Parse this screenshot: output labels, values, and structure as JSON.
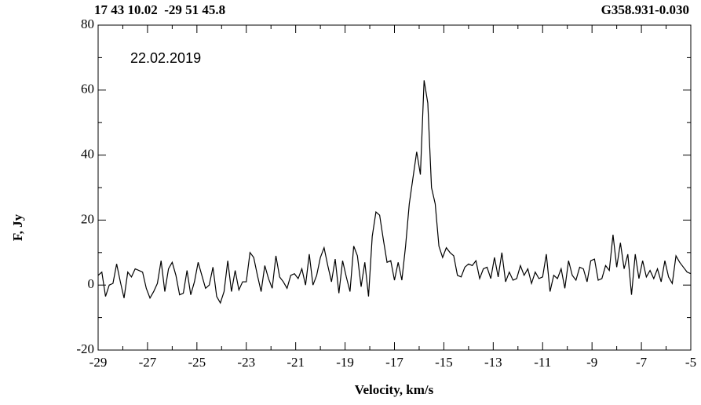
{
  "chart_data": {
    "type": "line",
    "title_left": "17 43 10.02  -29 51 45.8",
    "title_right": "G358.931-0.030",
    "annotation": "22.02.2019",
    "xlabel": "Velocity, km/s",
    "ylabel": "F, Jy",
    "color": "#000000",
    "xlim": [
      -29,
      -5
    ],
    "ylim": [
      -20,
      80
    ],
    "xticks": [
      -29,
      -27,
      -25,
      -23,
      -21,
      -19,
      -17,
      -15,
      -13,
      -11,
      -9,
      -7,
      -5
    ],
    "yticks": [
      -20,
      0,
      20,
      40,
      60,
      80
    ],
    "x": [
      -29.0,
      -28.85,
      -28.7,
      -28.55,
      -28.4,
      -28.25,
      -28.1,
      -27.95,
      -27.8,
      -27.65,
      -27.5,
      -27.35,
      -27.2,
      -27.05,
      -26.9,
      -26.75,
      -26.6,
      -26.45,
      -26.3,
      -26.15,
      -26.0,
      -25.85,
      -25.7,
      -25.55,
      -25.4,
      -25.25,
      -25.1,
      -24.95,
      -24.8,
      -24.65,
      -24.5,
      -24.35,
      -24.2,
      -24.05,
      -23.9,
      -23.75,
      -23.6,
      -23.45,
      -23.3,
      -23.15,
      -23.0,
      -22.85,
      -22.7,
      -22.55,
      -22.4,
      -22.25,
      -22.1,
      -21.95,
      -21.8,
      -21.65,
      -21.5,
      -21.35,
      -21.2,
      -21.05,
      -20.9,
      -20.75,
      -20.6,
      -20.45,
      -20.3,
      -20.15,
      -20.0,
      -19.85,
      -19.7,
      -19.55,
      -19.4,
      -19.25,
      -19.1,
      -18.95,
      -18.8,
      -18.65,
      -18.5,
      -18.35,
      -18.2,
      -18.05,
      -17.9,
      -17.75,
      -17.6,
      -17.45,
      -17.3,
      -17.15,
      -17.0,
      -16.85,
      -16.7,
      -16.55,
      -16.4,
      -16.25,
      -16.1,
      -15.95,
      -15.8,
      -15.65,
      -15.5,
      -15.35,
      -15.2,
      -15.05,
      -14.9,
      -14.75,
      -14.6,
      -14.45,
      -14.3,
      -14.15,
      -14.0,
      -13.85,
      -13.7,
      -13.55,
      -13.4,
      -13.25,
      -13.1,
      -12.95,
      -12.8,
      -12.65,
      -12.5,
      -12.35,
      -12.2,
      -12.05,
      -11.9,
      -11.75,
      -11.6,
      -11.45,
      -11.3,
      -11.15,
      -11.0,
      -10.85,
      -10.7,
      -10.55,
      -10.4,
      -10.25,
      -10.1,
      -9.95,
      -9.8,
      -9.65,
      -9.5,
      -9.35,
      -9.2,
      -9.05,
      -8.9,
      -8.75,
      -8.6,
      -8.45,
      -8.3,
      -8.15,
      -8.0,
      -7.85,
      -7.7,
      -7.55,
      -7.4,
      -7.25,
      -7.1,
      -6.95,
      -6.8,
      -6.65,
      -6.5,
      -6.35,
      -6.2,
      -6.05,
      -5.9,
      -5.75,
      -5.6,
      -5.45,
      -5.3,
      -5.15,
      -5.0
    ],
    "values": [
      3,
      4,
      -3.5,
      0,
      0.5,
      6.5,
      1,
      -4,
      4,
      2.5,
      5,
      4.5,
      4,
      -1,
      -4,
      -2,
      0.5,
      7.5,
      -2,
      5,
      7,
      3,
      -3,
      -2.5,
      4.5,
      -3,
      1,
      7,
      3,
      -1,
      0,
      5.5,
      -3.5,
      -5.5,
      -2,
      7.5,
      -2,
      4.5,
      -1.5,
      1,
      1,
      10,
      8.5,
      3,
      -2,
      6,
      2,
      -1,
      9,
      2.5,
      1,
      -1,
      3,
      3.5,
      2,
      5,
      0,
      9.5,
      0,
      3,
      8.5,
      11.5,
      6,
      1,
      8,
      -2.5,
      7.5,
      2.5,
      -2,
      12,
      9,
      -0.5,
      7,
      -3.5,
      15,
      22.5,
      21.5,
      14,
      7,
      7.5,
      1.5,
      7,
      1.5,
      12,
      25,
      33,
      41,
      34,
      63,
      56,
      30,
      25,
      12,
      8.5,
      11.5,
      10,
      9,
      3,
      2.5,
      5.5,
      6.5,
      6,
      7.5,
      2,
      5,
      5.5,
      2,
      8.5,
      2.5,
      10,
      1,
      4,
      1.5,
      2,
      6,
      3,
      5,
      0.5,
      4,
      2,
      2.5,
      9.5,
      -2,
      3,
      2,
      5,
      -1,
      7.5,
      3,
      1.5,
      5.5,
      5,
      1,
      7.5,
      8,
      1.5,
      2,
      6,
      4.5,
      15.5,
      5.5,
      13,
      5,
      9.5,
      -3,
      9.5,
      2,
      7.5,
      2.5,
      4.5,
      2,
      5,
      1,
      7.5,
      2.5,
      0.5,
      9,
      7,
      5.5,
      4,
      3.5
    ]
  }
}
